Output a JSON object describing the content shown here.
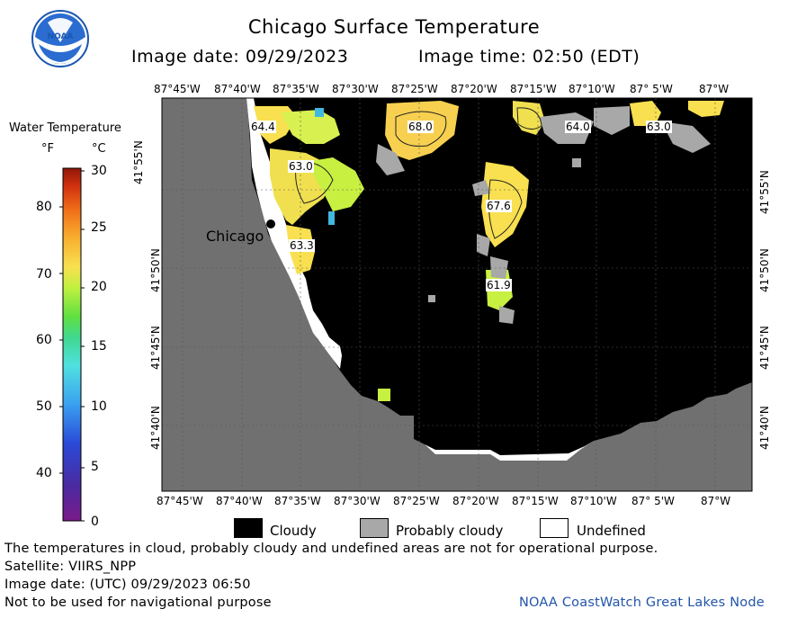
{
  "title": "Chicago Surface Temperature",
  "image_date": "Image date: 09/29/2023",
  "image_time": "Image time: 02:50 (EDT)",
  "colorbar": {
    "title": "Water Temperature",
    "unit_f": "°F",
    "unit_c": "°C",
    "f_ticks": [
      "80",
      "70",
      "60",
      "50",
      "40"
    ],
    "c_ticks": [
      "30",
      "25",
      "20",
      "15",
      "10",
      "5",
      "0"
    ]
  },
  "map": {
    "lon_labels": [
      "87°45'W",
      "87°40'W",
      "87°35'W",
      "87°30'W",
      "87°25'W",
      "87°20'W",
      "87°15'W",
      "87°10'W",
      "87° 5'W",
      "87°W"
    ],
    "lat_labels": [
      "41°55'N",
      "41°50'N",
      "41°45'N",
      "41°40'N"
    ],
    "city_label": "Chicago",
    "temp_labels": [
      "64.4",
      "68.0",
      "64.0",
      "63.0",
      "63.0",
      "67.6",
      "63.3",
      "61.9"
    ]
  },
  "legend": {
    "cloudy": "Cloudy",
    "probably_cloudy": "Probably cloudy",
    "undefined": "Undefined"
  },
  "footer": {
    "note": "The temperatures in cloud, probably cloudy and undefined areas are not for operational purpose.",
    "satellite": "Satellite: VIIRS_NPP",
    "utc_date": "Image date: (UTC) 09/29/2023  06:50",
    "nav_warning": "Not to be used for navigational purpose",
    "credit": "NOAA CoastWatch Great Lakes Node"
  },
  "colors": {
    "land": "#707070",
    "cloudy": "#000000",
    "probably_cloudy": "#a8a8a8",
    "undefined": "#ffffff",
    "credit": "#2255aa"
  },
  "icons": {
    "logo": "noaa-logo"
  }
}
